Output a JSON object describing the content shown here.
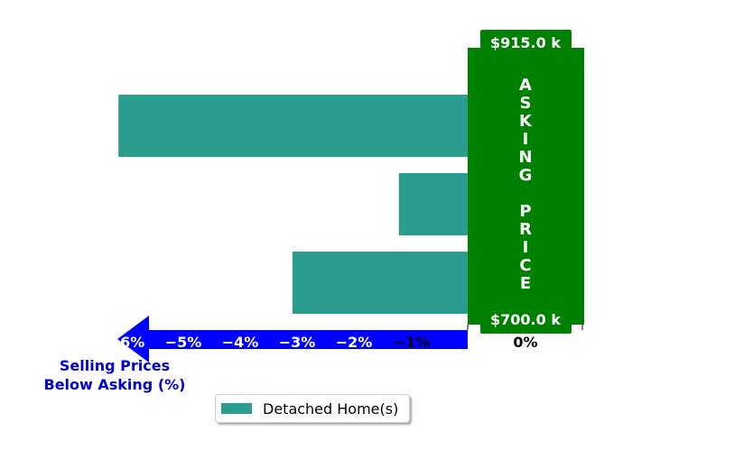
{
  "chart_data": {
    "type": "bar",
    "orientation": "horizontal",
    "categories": [
      "",
      "",
      ""
    ],
    "series": [
      {
        "name": "Detached Home(s)",
        "values": [
          -6.14,
          -1.21,
          -3.08
        ]
      }
    ],
    "xlim": [
      -7.0,
      1.0
    ],
    "x_ticks": [
      {
        "value": -6,
        "label": "−6%"
      },
      {
        "value": -5,
        "label": "−5%"
      },
      {
        "value": -4,
        "label": "−4%"
      },
      {
        "value": -3,
        "label": "−3%"
      },
      {
        "value": -2,
        "label": "−2%"
      },
      {
        "value": -1,
        "label": "−1%"
      },
      {
        "value": 0,
        "label": "0%"
      }
    ],
    "xlabel": "Selling Prices\nBelow Asking (%)",
    "asking_price_band": {
      "text": "ASKING PRICE",
      "top_label": "$915.0 k",
      "bottom_label": "$700.0 k",
      "color": "#008000"
    },
    "colors": {
      "bar": "#2a9d8f",
      "arrow": "#0000ff",
      "xlabel": "#0000cc",
      "band": "#008000"
    },
    "legend": {
      "placement": "bottom-center"
    }
  }
}
